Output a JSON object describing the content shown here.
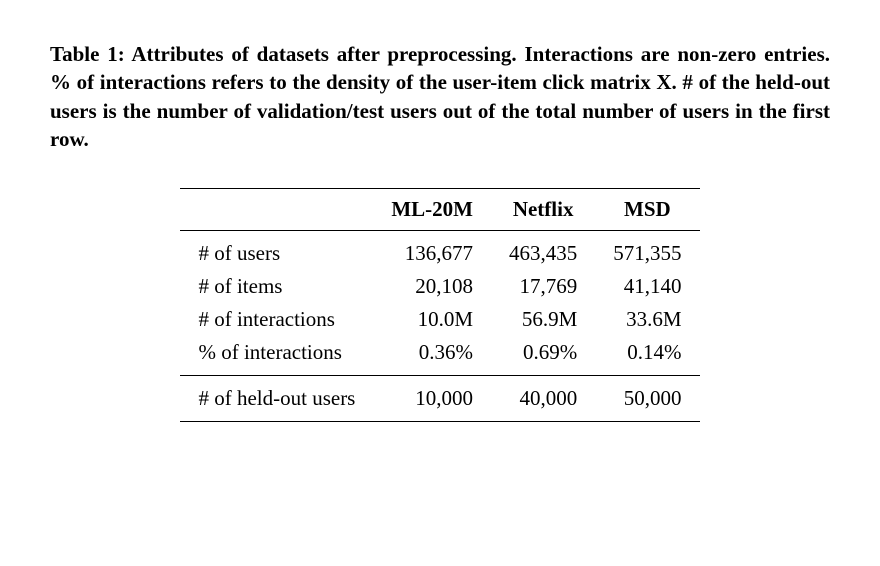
{
  "caption": "Table 1: Attributes of datasets after preprocessing. Interactions are non-zero entries. % of interactions refers to the density of the user-item click matrix X. # of the held-out users is the number of validation/test users out of the total number of users in the first row.",
  "table": {
    "columns": [
      "",
      "ML-20M",
      "Netflix",
      "MSD"
    ],
    "rows": [
      {
        "label": "# of users",
        "values": [
          "136,677",
          "463,435",
          "571,355"
        ]
      },
      {
        "label": "# of items",
        "values": [
          "20,108",
          "17,769",
          "41,140"
        ]
      },
      {
        "label": "# of interactions",
        "values": [
          "10.0M",
          "56.9M",
          "33.6M"
        ]
      },
      {
        "label": "% of interactions",
        "values": [
          "0.36%",
          "0.69%",
          "0.14%"
        ]
      },
      {
        "label": "# of held-out users",
        "values": [
          "10,000",
          "40,000",
          "50,000"
        ]
      }
    ],
    "section_break_after_row": 3,
    "border_color": "#000000",
    "header_border_top_width": 1.5,
    "header_border_bottom_width": 1,
    "body_font_size": 21,
    "cell_align_first": "left",
    "cell_align_rest": "right"
  }
}
